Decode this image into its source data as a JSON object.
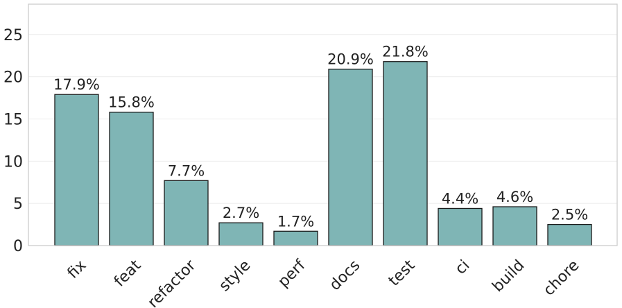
{
  "chart_data": {
    "type": "bar",
    "title": "",
    "xlabel": "",
    "ylabel": "",
    "categories": [
      "fix",
      "feat",
      "refactor",
      "style",
      "perf",
      "docs",
      "test",
      "ci",
      "build",
      "chore"
    ],
    "values": [
      17.9,
      15.8,
      7.7,
      2.7,
      1.7,
      20.9,
      21.8,
      4.4,
      4.6,
      2.5
    ],
    "value_labels": [
      "17.9%",
      "15.8%",
      "7.7%",
      "2.7%",
      "1.7%",
      "20.9%",
      "21.8%",
      "4.4%",
      "4.6%",
      "2.5%"
    ],
    "ylim": [
      0,
      28.6
    ],
    "yticks": [
      0,
      5,
      10,
      15,
      20,
      25
    ],
    "grid": "horizontal",
    "bar_color": "#7fb5b5",
    "bar_edge_color": "#1a1a1a",
    "axis_frame_color": "#cccccc",
    "grid_color": "#ebebeb"
  }
}
